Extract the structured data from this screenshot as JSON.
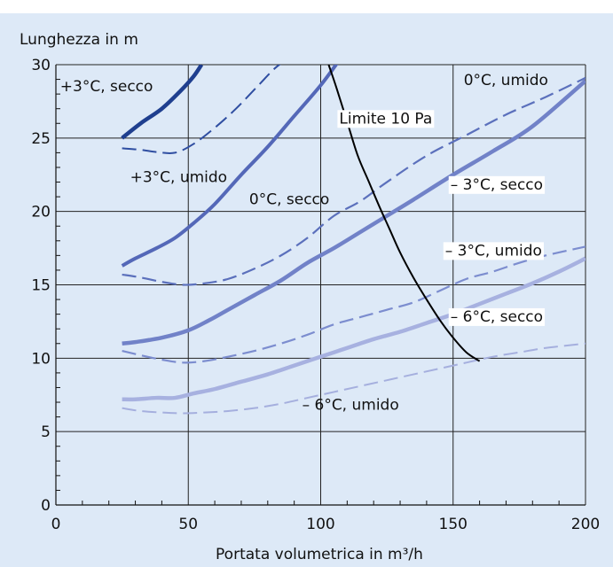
{
  "chart_data": {
    "type": "line",
    "title": "",
    "ylabel": "Lunghezza in m",
    "xlabel": "Portata volumetrica in m³/h",
    "xlim": [
      0,
      200
    ],
    "ylim": [
      0,
      30
    ],
    "x_ticks": [
      0,
      50,
      100,
      150,
      200
    ],
    "y_ticks": [
      0,
      5,
      10,
      15,
      20,
      25,
      30
    ],
    "grid": true,
    "series": [
      {
        "name": "+3°C, secco",
        "style": "solid",
        "color": "#1f3f8f",
        "width": 4.5,
        "points": [
          [
            25,
            25
          ],
          [
            32,
            26
          ],
          [
            40,
            27
          ],
          [
            47,
            28.2
          ],
          [
            52,
            29.2
          ],
          [
            55,
            30
          ]
        ]
      },
      {
        "name": "+3°C, umido",
        "style": "dashed",
        "color": "#2f4ea1",
        "width": 2,
        "points": [
          [
            25,
            24.3
          ],
          [
            32,
            24.2
          ],
          [
            38,
            24.05
          ],
          [
            45,
            24.0
          ],
          [
            52,
            24.6
          ],
          [
            60,
            25.7
          ],
          [
            68,
            27.0
          ],
          [
            76,
            28.5
          ],
          [
            83,
            29.8
          ],
          [
            88,
            30.4
          ]
        ]
      },
      {
        "name": "0°C, secco",
        "style": "solid",
        "color": "#5468b8",
        "width": 4,
        "points": [
          [
            25,
            16.3
          ],
          [
            30,
            16.8
          ],
          [
            38,
            17.5
          ],
          [
            45,
            18.2
          ],
          [
            52,
            19.2
          ],
          [
            60,
            20.5
          ],
          [
            70,
            22.5
          ],
          [
            80,
            24.4
          ],
          [
            90,
            26.5
          ],
          [
            100,
            28.6
          ],
          [
            107,
            30.3
          ]
        ]
      },
      {
        "name": "0°C, umido",
        "style": "dashed",
        "color": "#5b70bc",
        "width": 2.2,
        "points": [
          [
            25,
            15.7
          ],
          [
            32,
            15.5
          ],
          [
            40,
            15.2
          ],
          [
            48,
            15.0
          ],
          [
            56,
            15.1
          ],
          [
            65,
            15.4
          ],
          [
            75,
            16.1
          ],
          [
            85,
            17.0
          ],
          [
            95,
            18.2
          ],
          [
            105,
            19.7
          ],
          [
            115,
            20.7
          ],
          [
            125,
            22.0
          ],
          [
            140,
            23.8
          ],
          [
            155,
            25.2
          ],
          [
            170,
            26.6
          ],
          [
            185,
            27.8
          ],
          [
            200,
            29.1
          ]
        ]
      },
      {
        "name": "– 3°C, secco",
        "style": "solid",
        "color": "#7182c8",
        "width": 4.5,
        "points": [
          [
            25,
            11.0
          ],
          [
            30,
            11.1
          ],
          [
            40,
            11.4
          ],
          [
            50,
            11.9
          ],
          [
            58,
            12.6
          ],
          [
            65,
            13.3
          ],
          [
            75,
            14.3
          ],
          [
            85,
            15.3
          ],
          [
            95,
            16.5
          ],
          [
            105,
            17.5
          ],
          [
            115,
            18.6
          ],
          [
            125,
            19.7
          ],
          [
            135,
            20.8
          ],
          [
            150,
            22.5
          ],
          [
            165,
            24.1
          ],
          [
            180,
            25.8
          ],
          [
            200,
            28.9
          ]
        ]
      },
      {
        "name": "– 3°C, umido",
        "style": "dashed",
        "color": "#7c8dcf",
        "width": 2.2,
        "points": [
          [
            25,
            10.5
          ],
          [
            32,
            10.2
          ],
          [
            40,
            9.9
          ],
          [
            48,
            9.7
          ],
          [
            56,
            9.8
          ],
          [
            65,
            10.1
          ],
          [
            75,
            10.5
          ],
          [
            85,
            11.0
          ],
          [
            95,
            11.6
          ],
          [
            105,
            12.3
          ],
          [
            115,
            12.8
          ],
          [
            125,
            13.3
          ],
          [
            135,
            13.8
          ],
          [
            145,
            14.6
          ],
          [
            155,
            15.4
          ],
          [
            165,
            15.9
          ],
          [
            175,
            16.5
          ],
          [
            185,
            17.0
          ],
          [
            200,
            17.6
          ]
        ]
      },
      {
        "name": "– 6°C, secco",
        "style": "solid",
        "color": "#a7b1e0",
        "width": 4.5,
        "points": [
          [
            25,
            7.2
          ],
          [
            30,
            7.2
          ],
          [
            38,
            7.3
          ],
          [
            45,
            7.3
          ],
          [
            52,
            7.6
          ],
          [
            60,
            7.9
          ],
          [
            70,
            8.4
          ],
          [
            80,
            8.9
          ],
          [
            90,
            9.5
          ],
          [
            100,
            10.1
          ],
          [
            110,
            10.7
          ],
          [
            120,
            11.3
          ],
          [
            130,
            11.8
          ],
          [
            140,
            12.4
          ],
          [
            150,
            13.0
          ],
          [
            160,
            13.7
          ],
          [
            170,
            14.4
          ],
          [
            180,
            15.1
          ],
          [
            190,
            15.9
          ],
          [
            200,
            16.8
          ]
        ]
      },
      {
        "name": "– 6°C, umido",
        "style": "dashed",
        "color": "#a5afde",
        "width": 2,
        "points": [
          [
            25,
            6.6
          ],
          [
            32,
            6.4
          ],
          [
            40,
            6.3
          ],
          [
            48,
            6.25
          ],
          [
            56,
            6.3
          ],
          [
            65,
            6.4
          ],
          [
            75,
            6.6
          ],
          [
            85,
            6.9
          ],
          [
            95,
            7.3
          ],
          [
            105,
            7.7
          ],
          [
            115,
            8.1
          ],
          [
            125,
            8.5
          ],
          [
            135,
            8.9
          ],
          [
            145,
            9.3
          ],
          [
            155,
            9.7
          ],
          [
            165,
            10.1
          ],
          [
            175,
            10.4
          ],
          [
            185,
            10.7
          ],
          [
            200,
            11.0
          ]
        ]
      },
      {
        "name": "Limite 10 Pa",
        "style": "solid",
        "color": "#000000",
        "width": 2,
        "points": [
          [
            103,
            30.0
          ],
          [
            106,
            28.4
          ],
          [
            110,
            26.1
          ],
          [
            114,
            23.8
          ],
          [
            118,
            22.1
          ],
          [
            122,
            20.4
          ],
          [
            126,
            18.8
          ],
          [
            130,
            17.2
          ],
          [
            135,
            15.5
          ],
          [
            140,
            14.0
          ],
          [
            145,
            12.6
          ],
          [
            150,
            11.4
          ],
          [
            155,
            10.4
          ],
          [
            160,
            9.8
          ]
        ]
      }
    ],
    "annotations": [
      {
        "text": "+3°C, secco",
        "x": 1.6,
        "y": 28.2,
        "bg": false
      },
      {
        "text": "+3°C, umido",
        "x": 28,
        "y": 22.0,
        "bg": false
      },
      {
        "text": "0°C, secco",
        "x": 73,
        "y": 20.5,
        "bg": false
      },
      {
        "text": "Limite 10 Pa",
        "x": 107,
        "y": 26.0,
        "bg": true
      },
      {
        "text": "0°C, umido",
        "x": 154,
        "y": 28.6,
        "bg": false
      },
      {
        "text": "– 3°C, secco",
        "x": 149,
        "y": 21.5,
        "bg": true
      },
      {
        "text": "– 3°C, umido",
        "x": 147,
        "y": 17.0,
        "bg": true
      },
      {
        "text": "– 6°C, secco",
        "x": 149,
        "y": 12.5,
        "bg": true
      },
      {
        "text": "– 6°C, umido",
        "x": 93,
        "y": 6.5,
        "bg": false
      }
    ]
  }
}
